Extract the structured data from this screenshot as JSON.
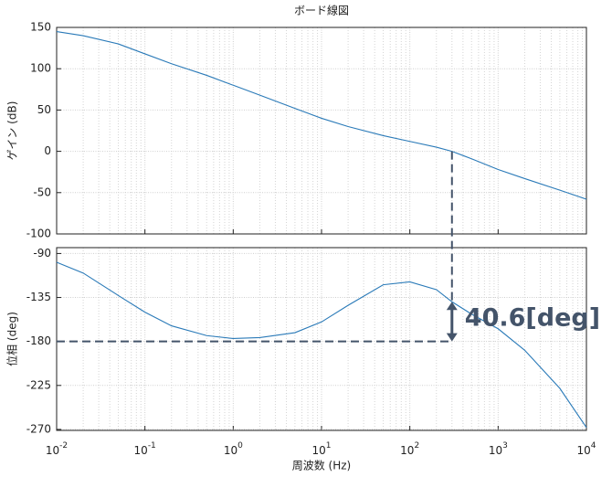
{
  "chart_data": [
    {
      "type": "line",
      "title": "ボード線図",
      "ylabel": "ゲイン (dB)",
      "log_x": true,
      "grid": true,
      "minor_grid": true,
      "x": [
        0.01,
        0.02,
        0.05,
        0.1,
        0.2,
        0.5,
        1,
        2,
        5,
        10,
        20,
        50,
        100,
        200,
        300,
        500,
        1000,
        2000,
        5000,
        10000
      ],
      "series": [
        {
          "color": "#2a7ab8",
          "values": [
            145,
            140,
            130,
            118,
            106,
            92,
            80,
            68,
            52,
            40,
            30,
            19,
            12,
            5,
            0,
            -9,
            -22,
            -33,
            -47,
            -58
          ]
        }
      ],
      "xlim": [
        0.01,
        10000
      ],
      "xticks": [
        0.01,
        0.1,
        1,
        10,
        100,
        1000,
        10000
      ],
      "ylim": [
        -100,
        150
      ],
      "yticks": [
        -100,
        -50,
        0,
        50,
        100,
        150
      ],
      "crossover": {
        "x": 300,
        "y": 0
      }
    },
    {
      "type": "line",
      "ylabel": "位相 (deg)",
      "xlabel": "周波数 (Hz)",
      "log_x": true,
      "grid": true,
      "minor_grid": true,
      "x": [
        0.01,
        0.02,
        0.05,
        0.1,
        0.2,
        0.5,
        1,
        2,
        5,
        10,
        20,
        50,
        100,
        200,
        300,
        500,
        1000,
        2000,
        5000,
        10000
      ],
      "series": [
        {
          "color": "#2a7ab8",
          "values": [
            -99,
            -110,
            -133,
            -150,
            -164,
            -174,
            -177,
            -176,
            -171,
            -160,
            -143,
            -122,
            -119,
            -127,
            -139.4,
            -152,
            -167,
            -189,
            -228,
            -268
          ]
        }
      ],
      "xlim": [
        0.01,
        10000
      ],
      "xticks": [
        {
          "value": 0.01,
          "label": "10",
          "exponent": "-2"
        },
        {
          "value": 0.1,
          "label": "10",
          "exponent": "-1"
        },
        {
          "value": 1,
          "label": "10",
          "exponent": "0"
        },
        {
          "value": 10,
          "label": "10",
          "exponent": "1"
        },
        {
          "value": 100,
          "label": "10",
          "exponent": "2"
        },
        {
          "value": 1000,
          "label": "10",
          "exponent": "3"
        },
        {
          "value": 10000,
          "label": "10",
          "exponent": "4"
        }
      ],
      "ylim": [
        -271,
        -84
      ],
      "yticks": [
        -270,
        -225,
        -180,
        -135,
        -90
      ],
      "margin": {
        "label": "40.6[deg]",
        "x": 300,
        "y": -139.4,
        "y_ref": -180,
        "color": "#44546a"
      }
    }
  ]
}
